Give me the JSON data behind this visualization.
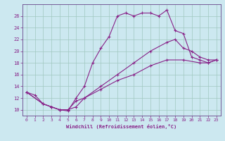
{
  "xlabel": "Windchill (Refroidissement éolien,°C)",
  "background_color": "#cce8f0",
  "grid_color": "#a0c8c0",
  "line_color": "#882288",
  "spine_color": "#664488",
  "xlim": [
    -0.5,
    23.5
  ],
  "ylim": [
    9.0,
    28.0
  ],
  "yticks": [
    10,
    12,
    14,
    16,
    18,
    20,
    22,
    24,
    26
  ],
  "xticks": [
    0,
    1,
    2,
    3,
    4,
    5,
    6,
    7,
    8,
    9,
    10,
    11,
    12,
    13,
    14,
    15,
    16,
    17,
    18,
    19,
    20,
    21,
    22,
    23
  ],
  "series": [
    {
      "x": [
        0,
        1,
        2,
        3,
        4,
        5,
        6,
        7,
        8,
        9,
        10,
        11,
        12,
        13,
        14,
        15,
        16,
        17,
        18,
        19,
        20,
        21,
        22,
        23
      ],
      "y": [
        13.0,
        12.5,
        11.0,
        10.5,
        10.0,
        9.8,
        12.0,
        14.0,
        18.0,
        20.5,
        22.5,
        26.0,
        26.5,
        26.0,
        26.5,
        26.5,
        26.0,
        27.0,
        23.5,
        23.0,
        19.0,
        18.5,
        18.0,
        18.5
      ]
    },
    {
      "x": [
        0,
        2,
        3,
        4,
        5,
        6,
        7,
        9,
        11,
        13,
        15,
        17,
        18,
        19,
        20,
        21,
        22,
        23
      ],
      "y": [
        13.0,
        11.0,
        10.5,
        10.0,
        10.0,
        11.5,
        12.0,
        14.0,
        16.0,
        18.0,
        20.0,
        21.5,
        22.0,
        20.5,
        20.0,
        19.0,
        18.5,
        18.5
      ]
    },
    {
      "x": [
        0,
        2,
        3,
        4,
        5,
        6,
        7,
        9,
        11,
        13,
        15,
        17,
        19,
        21,
        22,
        23
      ],
      "y": [
        13.0,
        11.0,
        10.5,
        10.0,
        10.0,
        10.5,
        12.0,
        13.5,
        15.0,
        16.0,
        17.5,
        18.5,
        18.5,
        18.0,
        18.0,
        18.5
      ]
    }
  ]
}
